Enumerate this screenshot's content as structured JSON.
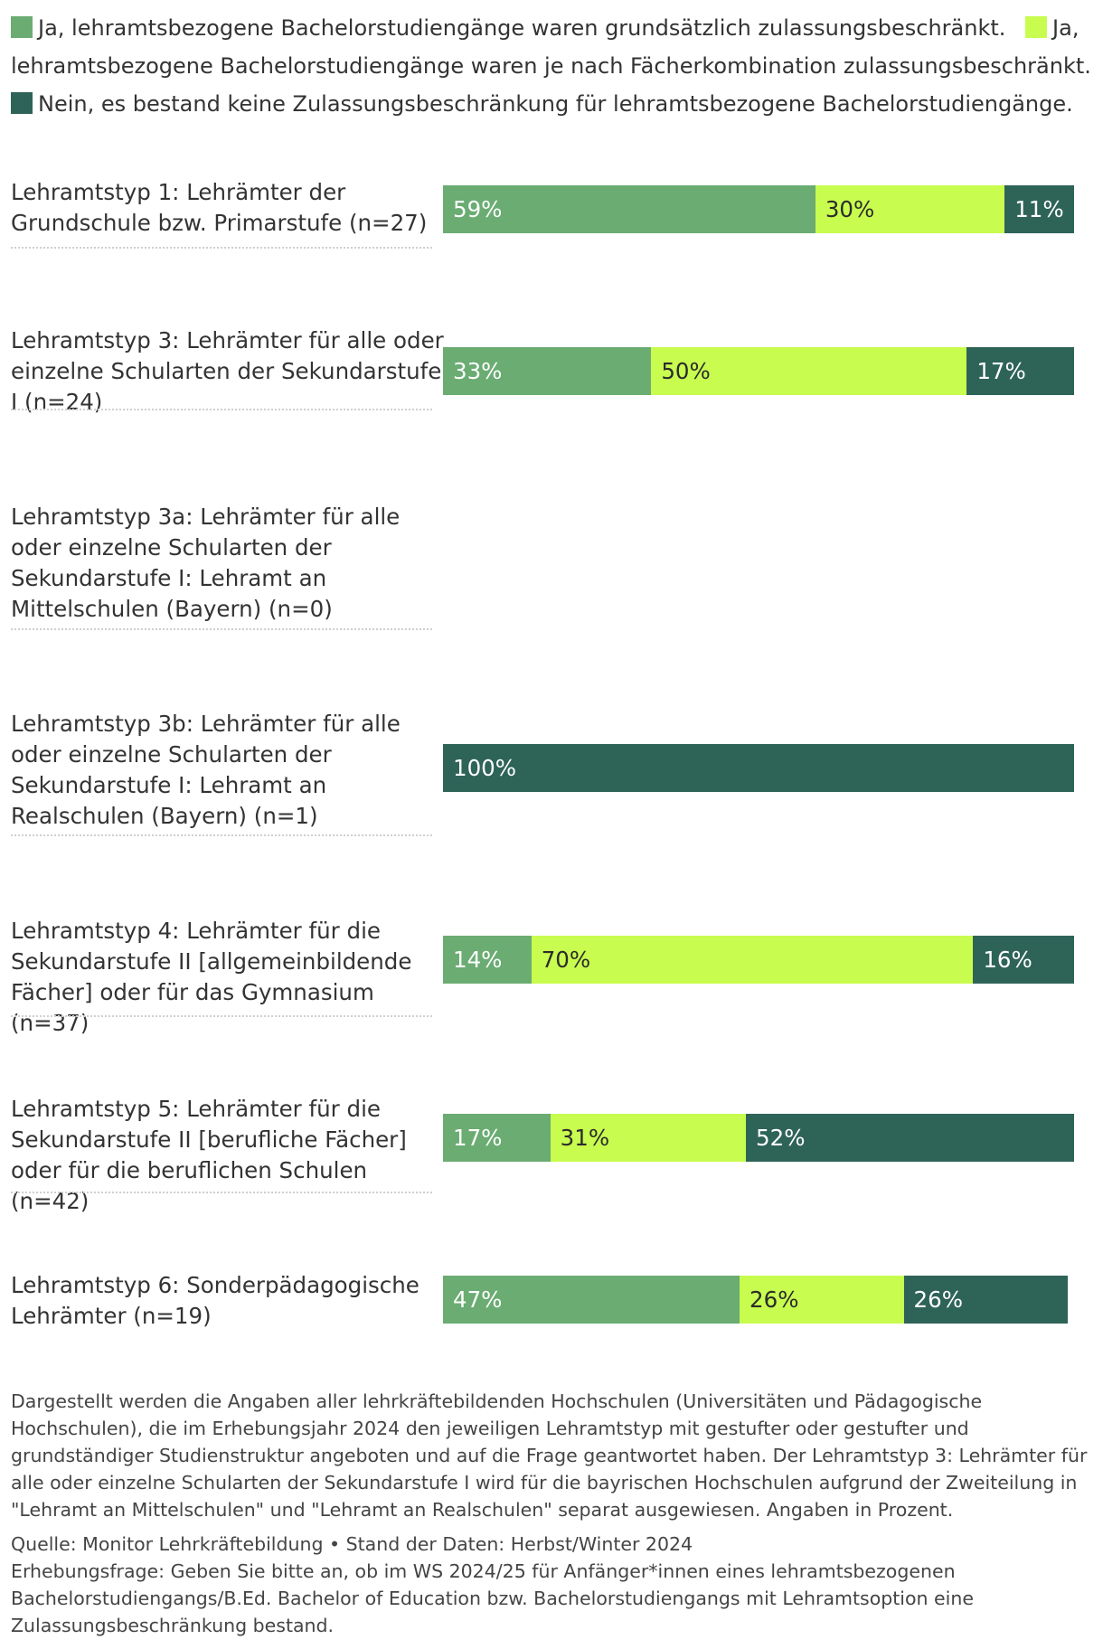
{
  "colors": {
    "series": [
      "#6aac72",
      "#c8fc4f",
      "#2e6358"
    ],
    "label_text": [
      "#ffffff",
      "#2b2b2b",
      "#ffffff"
    ],
    "separator": "#cfcfcf",
    "text": "#333333"
  },
  "chart_data": {
    "type": "bar",
    "orientation": "horizontal",
    "stacked": true,
    "unit": "%",
    "categories": [
      "Lehramtstyp 1: Lehrämter der Grundschule bzw. Primarstufe (n=27)",
      "Lehramtstyp 3: Lehrämter für alle oder einzelne Schularten der Sekundarstufe I (n=24)",
      "Lehramtstyp 3a: Lehrämter für alle oder einzelne Schularten der Sekundarstufe I: Lehramt an Mittelschulen (Bayern) (n=0)",
      "Lehramtstyp 3b: Lehrämter für alle oder einzelne Schularten der Sekundarstufe I: Lehramt an Realschulen (Bayern) (n=1)",
      "Lehramtstyp 4: Lehrämter für die Sekundarstufe II [allgemeinbildende Fächer] oder für das Gymnasium (n=37)",
      "Lehramtstyp 5: Lehrämter für die Sekundarstufe II [berufliche Fächer] oder für die beruflichen Schulen (n=42)",
      "Lehramtstyp 6: Sonderpädagogische Lehrämter (n=19)"
    ],
    "series": [
      {
        "name": "Ja, lehramtsbezogene Bachelorstudiengänge waren grundsätzlich zulassungsbeschränkt.",
        "values": [
          59,
          33,
          null,
          0,
          14,
          17,
          47
        ],
        "labels": [
          "59%",
          "33%",
          "",
          "",
          "14%",
          "17%",
          "47%"
        ]
      },
      {
        "name": "Ja, lehramtsbezogene Bachelorstudiengänge waren je nach Fächerkombination zulassungsbeschränkt.",
        "values": [
          30,
          50,
          null,
          0,
          70,
          31,
          26
        ],
        "labels": [
          "30%",
          "50%",
          "",
          "",
          "70%",
          "31%",
          "26%"
        ]
      },
      {
        "name": "Nein, es bestand keine Zulassungsbeschränkung für lehramtsbezogene Bachelorstudiengänge.",
        "values": [
          11,
          17,
          null,
          100,
          16,
          52,
          26
        ],
        "labels": [
          "11%",
          "17%",
          "",
          "100%",
          "16%",
          "52%",
          "26%"
        ]
      }
    ],
    "xlim": [
      0,
      100
    ],
    "legend": "top"
  },
  "footnote": {
    "note": "Dargestellt werden die Angaben aller lehrkräftebildenden Hochschulen (Universitäten und Pädagogische Hochschulen), die im Erhebungsjahr 2024 den jeweiligen Lehramtstyp mit gestufter oder gestufter und grundständiger Studienstruktur angeboten und auf die Frage geantwortet haben. Der Lehramtstyp 3: Lehrämter für alle oder einzelne Schularten der Sekundarstufe I wird für die bayrischen Hochschulen aufgrund der Zweiteilung in \"Lehramt an Mittelschulen\" und \"Lehramt an Realschulen\" separat ausgewiesen. Angaben in Prozent.",
    "source": "Quelle: Monitor Lehrkräftebildung • Stand der Daten: Herbst/Winter 2024",
    "question": "Erhebungsfrage: Geben Sie bitte an, ob im WS 2024/25 für Anfänger*innen eines lehramtsbezogenen Bachelorstudiengangs/B.Ed. Bachelor of Education bzw. Bachelorstudiengangs mit Lehramtsoption eine Zulassungsbeschränkung bestand."
  }
}
